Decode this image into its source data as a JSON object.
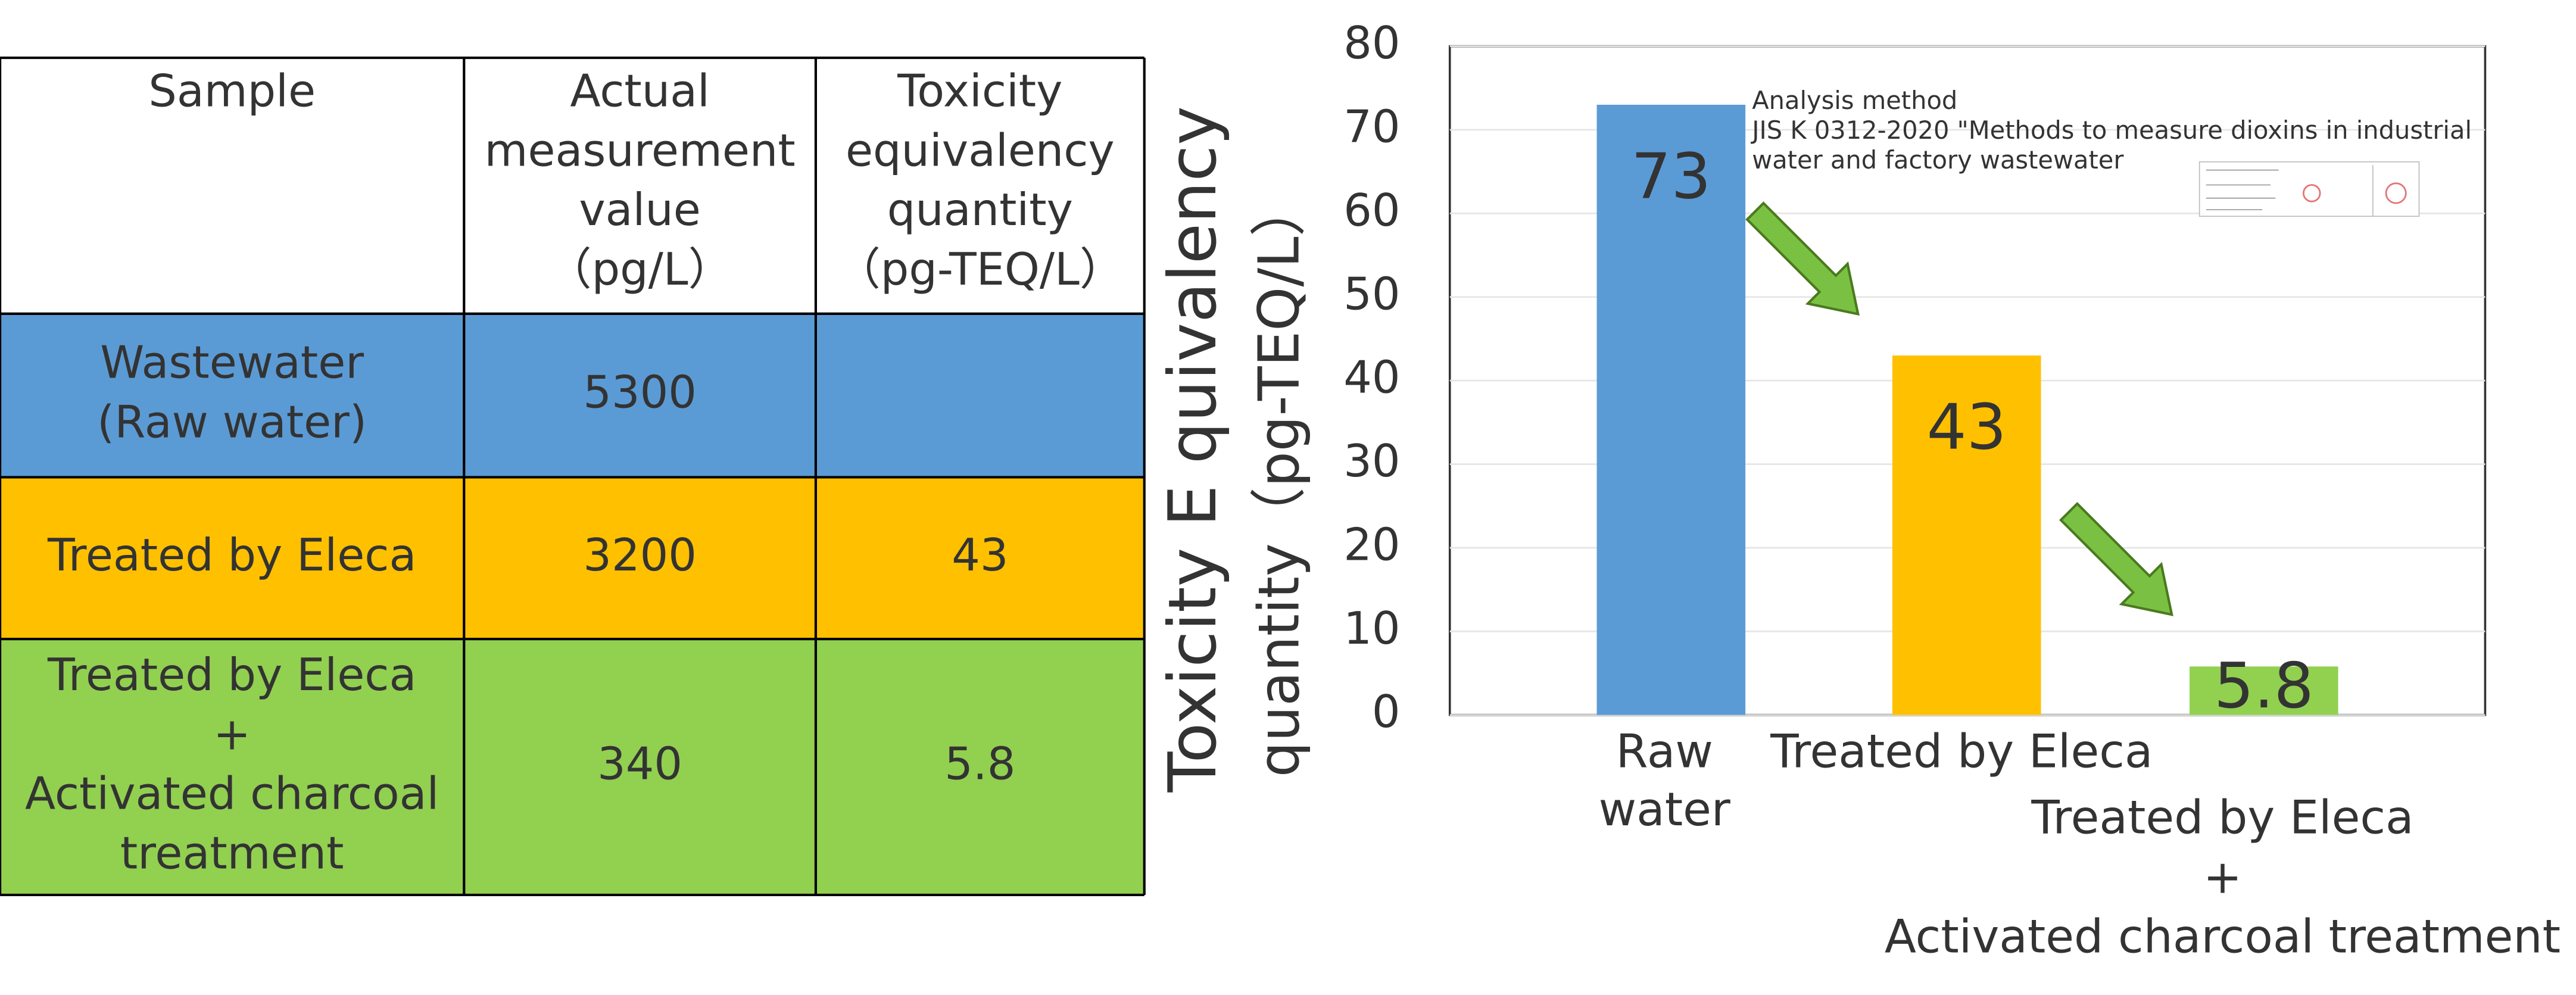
{
  "table": {
    "header": [
      [
        "Sample"
      ],
      [
        "Actual",
        "measurement",
        "value",
        "（pg/L）"
      ],
      [
        "Toxicity",
        "equivalency",
        "quantity",
        "（pg-TEQ/L）"
      ]
    ],
    "row_colors": [
      "#5b9bd5",
      "#ffc000",
      "#92d050"
    ],
    "rows": [
      [
        [
          "Wastewater",
          "(Raw water)"
        ],
        [
          "5300"
        ],
        null
      ],
      [
        [
          "Treated by Eleca"
        ],
        [
          "3200"
        ],
        [
          "43"
        ]
      ],
      [
        [
          "Treated by Eleca",
          "+",
          "Activated charcoal",
          "treatment"
        ],
        [
          "340"
        ],
        [
          "5.8"
        ]
      ]
    ]
  },
  "chart_data": {
    "type": "bar",
    "ylabel": [
      "Toxicity E quivalency",
      "quantity（pg-TEQ/L）"
    ],
    "categories": [
      [
        "Raw",
        "water"
      ],
      [
        "Treated by Eleca"
      ],
      [
        "Treated by Eleca",
        "+",
        "Activated charcoal treatment"
      ]
    ],
    "values": [
      73,
      43,
      5.8
    ],
    "colors": [
      "#5b9bd5",
      "#ffc000",
      "#92d050"
    ],
    "ylim": [
      0,
      80
    ],
    "yticks": [
      0,
      10,
      20,
      30,
      40,
      50,
      60,
      70,
      80
    ],
    "grid": true,
    "annotation": [
      "Analysis method",
      "JIS K 0312-2020 \"Methods to measure dioxins in industrial",
      "water and factory wastewater"
    ]
  }
}
